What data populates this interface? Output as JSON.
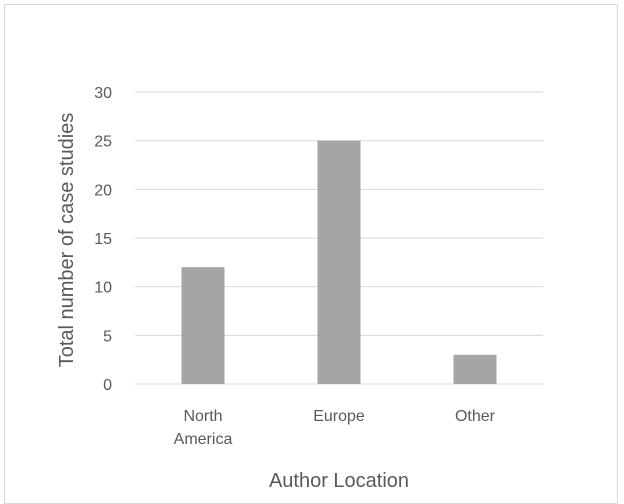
{
  "chart_data": {
    "type": "bar",
    "title": "",
    "xlabel": "Author Location",
    "ylabel": "Total number of case studies",
    "categories": [
      [
        "North",
        "America"
      ],
      [
        "Europe"
      ],
      [
        "Other"
      ]
    ],
    "values": [
      12,
      25,
      3
    ],
    "ylim": [
      0,
      30
    ],
    "yticks": [
      0,
      5,
      10,
      15,
      20,
      25,
      30
    ],
    "grid": true,
    "legend": "none",
    "bar_color": "#a5a5a5",
    "grid_color": "#d9d9d9"
  }
}
